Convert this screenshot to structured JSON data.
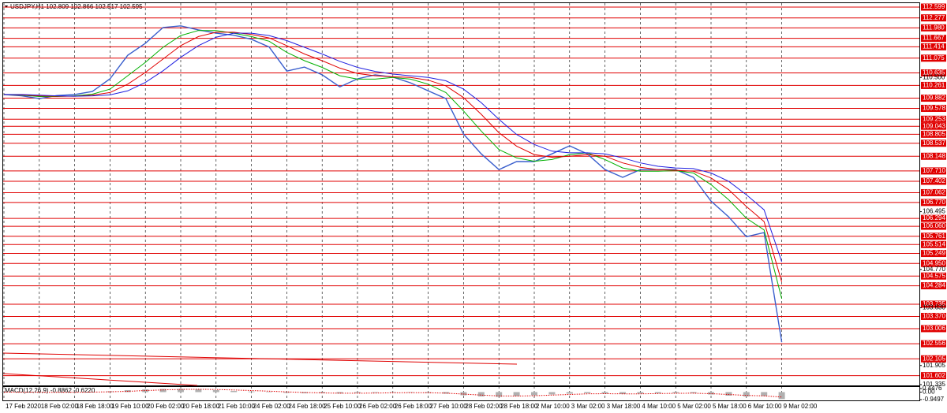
{
  "chart_data": [
    {
      "type": "line",
      "title": "USDJPY,H1 102.809 102.866 102.517 102.595",
      "categories": [
        "17 Feb 2020",
        null,
        "18 Feb 02:00",
        null,
        "18 Feb 18:00",
        null,
        "19 Feb 10:00",
        null,
        "20 Feb 02:00",
        null,
        "20 Feb 18:00",
        null,
        "21 Feb 10:00",
        null,
        "24 Feb 02:00",
        null,
        "24 Feb 18:00",
        null,
        "25 Feb 10:00",
        null,
        "26 Feb 02:00",
        null,
        "26 Feb 18:00",
        null,
        "27 Feb 10:00",
        null,
        "28 Feb 02:00",
        null,
        "28 Feb 18:00",
        null,
        "2 Mar 10:00",
        null,
        "3 Mar 02:00",
        null,
        "3 Mar 18:00",
        null,
        "4 Mar 10:00",
        null,
        "5 Mar 02:00",
        null,
        "5 Mar 18:00",
        null,
        "6 Mar 10:00",
        null,
        "9 Mar 02:00"
      ],
      "series": [
        {
          "color": "#3a5fcd",
          "values": [
            109.99,
            109.95,
            109.87,
            109.96,
            109.99,
            110.08,
            110.46,
            111.16,
            111.52,
            111.99,
            112.04,
            111.92,
            111.82,
            111.76,
            111.64,
            111.41,
            110.69,
            110.81,
            110.58,
            110.22,
            110.46,
            110.58,
            110.51,
            110.34,
            110.1,
            109.87,
            108.81,
            108.22,
            107.75,
            107.99,
            107.99,
            108.22,
            108.46,
            108.22,
            107.75,
            107.52,
            107.75,
            107.75,
            107.75,
            107.52,
            106.81,
            106.34,
            105.75,
            105.87,
            102.6
          ]
        },
        {
          "color": "#00b000",
          "values": [
            109.99,
            109.97,
            109.93,
            109.93,
            109.95,
            110.0,
            110.15,
            110.55,
            110.95,
            111.4,
            111.75,
            111.9,
            111.9,
            111.82,
            111.72,
            111.58,
            111.25,
            111.0,
            110.8,
            110.55,
            110.45,
            110.45,
            110.5,
            110.45,
            110.3,
            110.05,
            109.5,
            108.9,
            108.35,
            108.1,
            108.0,
            108.05,
            108.2,
            108.25,
            108.05,
            107.8,
            107.7,
            107.7,
            107.72,
            107.65,
            107.3,
            106.85,
            106.3,
            105.95,
            103.9
          ]
        },
        {
          "color": "#e00000",
          "values": [
            109.99,
            109.98,
            109.95,
            109.94,
            109.94,
            109.97,
            110.05,
            110.3,
            110.65,
            111.05,
            111.45,
            111.72,
            111.85,
            111.85,
            111.78,
            111.68,
            111.45,
            111.2,
            111.0,
            110.78,
            110.62,
            110.55,
            110.52,
            110.5,
            110.42,
            110.25,
            109.9,
            109.4,
            108.85,
            108.45,
            108.2,
            108.12,
            108.15,
            108.2,
            108.15,
            107.95,
            107.82,
            107.75,
            107.73,
            107.7,
            107.5,
            107.15,
            106.65,
            106.2,
            104.4
          ]
        },
        {
          "color": "#2020e0",
          "values": [
            109.99,
            109.99,
            109.97,
            109.95,
            109.94,
            109.95,
            109.98,
            110.1,
            110.35,
            110.7,
            111.1,
            111.45,
            111.7,
            111.82,
            111.82,
            111.75,
            111.6,
            111.4,
            111.2,
            110.98,
            110.8,
            110.68,
            110.6,
            110.55,
            110.5,
            110.4,
            110.15,
            109.75,
            109.25,
            108.8,
            108.5,
            108.3,
            108.25,
            108.25,
            108.22,
            108.1,
            107.95,
            107.85,
            107.8,
            107.78,
            107.65,
            107.4,
            107.0,
            106.55,
            105.0
          ]
        }
      ],
      "ylim": [
        101.335,
        112.599
      ],
      "yticks": [
        {
          "value": 110.5,
          "label": "110.500"
        },
        106.495,
        {
          "value": 104.77,
          "label": "104.770"
        },
        {
          "value": 103.63,
          "label": "103.630"
        },
        101.905,
        101.335
      ],
      "levels": [
        112.599,
        112.277,
        {
          "value": 111.98,
          "label": "111.980"
        },
        111.667,
        111.414,
        111.075,
        110.635,
        110.261,
        109.882,
        109.578,
        109.253,
        109.043,
        108.805,
        108.537,
        108.148,
        {
          "value": 107.71,
          "label": "107.710"
        },
        107.402,
        107.062,
        {
          "value": 106.77,
          "label": "106.770"
        },
        106.294,
        {
          "value": 106.06,
          "label": "106.060"
        },
        105.761,
        105.514,
        105.249,
        {
          "value": 104.95,
          "label": "104.950"
        },
        104.575,
        104.284,
        103.735,
        {
          "value": 103.37,
          "label": "103.370"
        },
        103.006,
        102.556,
        102.105,
        101.602
      ],
      "level_color": "#e00000"
    },
    {
      "type": "macd",
      "title": "MACD(12,26,9) -0.8862 -0.6220",
      "values": [
        0,
        -0.02,
        -0.04,
        -0.02,
        0,
        0.03,
        0.1,
        0.25,
        0.35,
        0.4,
        0.4,
        0.35,
        0.25,
        0.15,
        0.08,
        0,
        -0.1,
        -0.15,
        -0.15,
        -0.18,
        -0.12,
        -0.08,
        -0.05,
        -0.06,
        -0.12,
        -0.2,
        -0.4,
        -0.55,
        -0.6,
        -0.5,
        -0.4,
        -0.3,
        -0.2,
        -0.15,
        -0.2,
        -0.25,
        -0.2,
        -0.15,
        -0.12,
        -0.15,
        -0.3,
        -0.45,
        -0.55,
        -0.5,
        -0.8862
      ],
      "color": "#b0b0b0",
      "signal": {
        "color": "#e00000",
        "values": [
          0,
          -0.01,
          -0.02,
          -0.03,
          -0.02,
          0,
          0.04,
          0.1,
          0.2,
          0.28,
          0.34,
          0.36,
          0.33,
          0.27,
          0.2,
          0.12,
          0.03,
          -0.05,
          -0.1,
          -0.14,
          -0.14,
          -0.12,
          -0.09,
          -0.07,
          -0.08,
          -0.13,
          -0.25,
          -0.38,
          -0.48,
          -0.5,
          -0.46,
          -0.38,
          -0.3,
          -0.22,
          -0.2,
          -0.22,
          -0.22,
          -0.19,
          -0.15,
          -0.14,
          -0.2,
          -0.3,
          -0.42,
          -0.48,
          -0.622
        ]
      },
      "ylim": [
        -0.9497,
        0.4476
      ],
      "yticks": [
        0.4476,
        {
          "value": 0,
          "label": "0.00"
        },
        -0.9497
      ]
    }
  ]
}
